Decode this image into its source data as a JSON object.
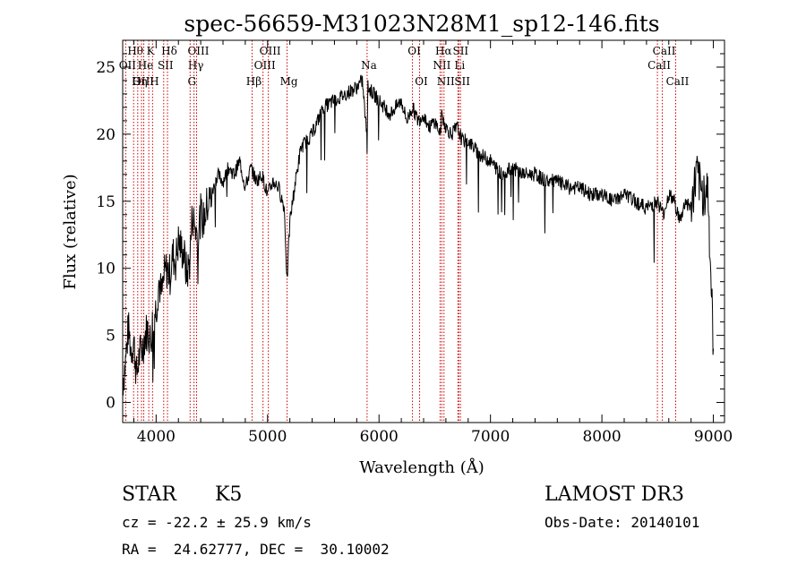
{
  "chart_data": {
    "type": "line",
    "title": "spec-56659-M31023N28M1_sp12-146.fits",
    "xlabel": "Wavelength (Å)",
    "ylabel": "Flux (relative)",
    "xlim": [
      3700,
      9100
    ],
    "ylim": [
      -1.5,
      27
    ],
    "x_ticks": [
      4000,
      5000,
      6000,
      7000,
      8000,
      9000
    ],
    "y_ticks": [
      0,
      5,
      10,
      15,
      20,
      25
    ],
    "grid": false,
    "series": [
      {
        "name": "spectrum",
        "color": "#000000",
        "x": [
          3700,
          3725,
          3750,
          3775,
          3800,
          3825,
          3850,
          3875,
          3900,
          3925,
          3950,
          3975,
          4000,
          4025,
          4050,
          4075,
          4100,
          4125,
          4150,
          4175,
          4200,
          4225,
          4250,
          4275,
          4300,
          4325,
          4350,
          4375,
          4400,
          4425,
          4450,
          4500,
          4550,
          4600,
          4650,
          4700,
          4750,
          4800,
          4850,
          4900,
          4950,
          5000,
          5050,
          5100,
          5150,
          5175,
          5200,
          5250,
          5300,
          5400,
          5500,
          5600,
          5700,
          5800,
          5850,
          5890,
          5900,
          5950,
          6000,
          6050,
          6100,
          6150,
          6200,
          6250,
          6300,
          6350,
          6400,
          6450,
          6500,
          6550,
          6563,
          6600,
          6650,
          6700,
          6750,
          6800,
          6900,
          7000,
          7100,
          7200,
          7300,
          7400,
          7500,
          7600,
          7700,
          7800,
          7900,
          8000,
          8100,
          8200,
          8300,
          8400,
          8500,
          8550,
          8600,
          8650,
          8700,
          8750,
          8800,
          8850,
          8900,
          8950,
          9000
        ],
        "y": [
          1.5,
          3.0,
          5.5,
          4.0,
          4.5,
          2.0,
          3.5,
          4.0,
          5.0,
          5.5,
          4.5,
          6.5,
          7.0,
          9.0,
          8.0,
          9.5,
          10.0,
          9.5,
          11.0,
          10.5,
          12.0,
          11.5,
          11.0,
          9.5,
          10.5,
          14.0,
          13.0,
          12.5,
          14.0,
          13.5,
          14.5,
          15.5,
          17.0,
          16.5,
          17.5,
          17.0,
          18.0,
          16.0,
          17.5,
          16.5,
          17.0,
          15.5,
          16.5,
          16.0,
          14.5,
          9.0,
          13.5,
          16.5,
          19.0,
          20.0,
          22.0,
          22.5,
          23.0,
          23.5,
          24.0,
          20.0,
          23.5,
          23.0,
          22.5,
          22.0,
          21.5,
          22.0,
          22.5,
          21.0,
          22.0,
          21.0,
          21.5,
          20.5,
          21.0,
          20.0,
          21.5,
          20.5,
          20.0,
          20.5,
          19.5,
          19.5,
          18.5,
          18.0,
          17.0,
          17.5,
          17.0,
          17.0,
          16.5,
          16.5,
          16.0,
          16.0,
          15.5,
          15.5,
          15.0,
          15.5,
          15.0,
          14.5,
          15.0,
          14.0,
          15.5,
          15.0,
          13.5,
          15.0,
          14.5,
          17.0,
          15.5,
          16.0,
          4.0
        ]
      }
    ],
    "line_markers": [
      {
        "name": "Hθ",
        "wl": 3798,
        "row": 0
      },
      {
        "name": "OII",
        "wl": 3727,
        "row": 1
      },
      {
        "name": "OIII",
        "wl": 3869,
        "row": 2
      },
      {
        "name": "K",
        "wl": 3934,
        "row": 0
      },
      {
        "name": "He",
        "wl": 3889,
        "row": 1
      },
      {
        "name": "Hη",
        "wl": 3835,
        "row": 2
      },
      {
        "name": "SII",
        "wl": 4068,
        "row": 1
      },
      {
        "name": "H",
        "wl": 3968,
        "row": 2
      },
      {
        "name": "Hδ",
        "wl": 4102,
        "row": 0
      },
      {
        "name": "OIII",
        "wl": 4363,
        "row": 0
      },
      {
        "name": "Hγ",
        "wl": 4340,
        "row": 1
      },
      {
        "name": "G",
        "wl": 4305,
        "row": 2
      },
      {
        "name": "OIII",
        "wl": 5007,
        "row": 0
      },
      {
        "name": "OIII",
        "wl": 4959,
        "row": 1
      },
      {
        "name": "Hβ",
        "wl": 4861,
        "row": 2
      },
      {
        "name": "Mg",
        "wl": 5175,
        "row": 2
      },
      {
        "name": "Na",
        "wl": 5893,
        "row": 1
      },
      {
        "name": "OI",
        "wl": 6300,
        "row": 0
      },
      {
        "name": "OI",
        "wl": 6364,
        "row": 2
      },
      {
        "name": "Hα",
        "wl": 6563,
        "row": 0
      },
      {
        "name": "NII",
        "wl": 6548,
        "row": 1
      },
      {
        "name": "NII",
        "wl": 6583,
        "row": 2
      },
      {
        "name": "SII",
        "wl": 6716,
        "row": 0
      },
      {
        "name": "Li",
        "wl": 6708,
        "row": 1
      },
      {
        "name": "SII",
        "wl": 6731,
        "row": 2
      },
      {
        "name": "CaII",
        "wl": 8542,
        "row": 0
      },
      {
        "name": "CaII",
        "wl": 8498,
        "row": 1
      },
      {
        "name": "CaII",
        "wl": 8662,
        "row": 2
      }
    ]
  },
  "info": {
    "object_class": "STAR",
    "subclass": "K5",
    "survey": "LAMOST DR3",
    "redshift_line": "cz = -22.2 ± 25.9 km/s",
    "obs_date_line": "Obs-Date: 20140101",
    "coords_line": "RA =  24.62777, DEC =  30.10002"
  }
}
